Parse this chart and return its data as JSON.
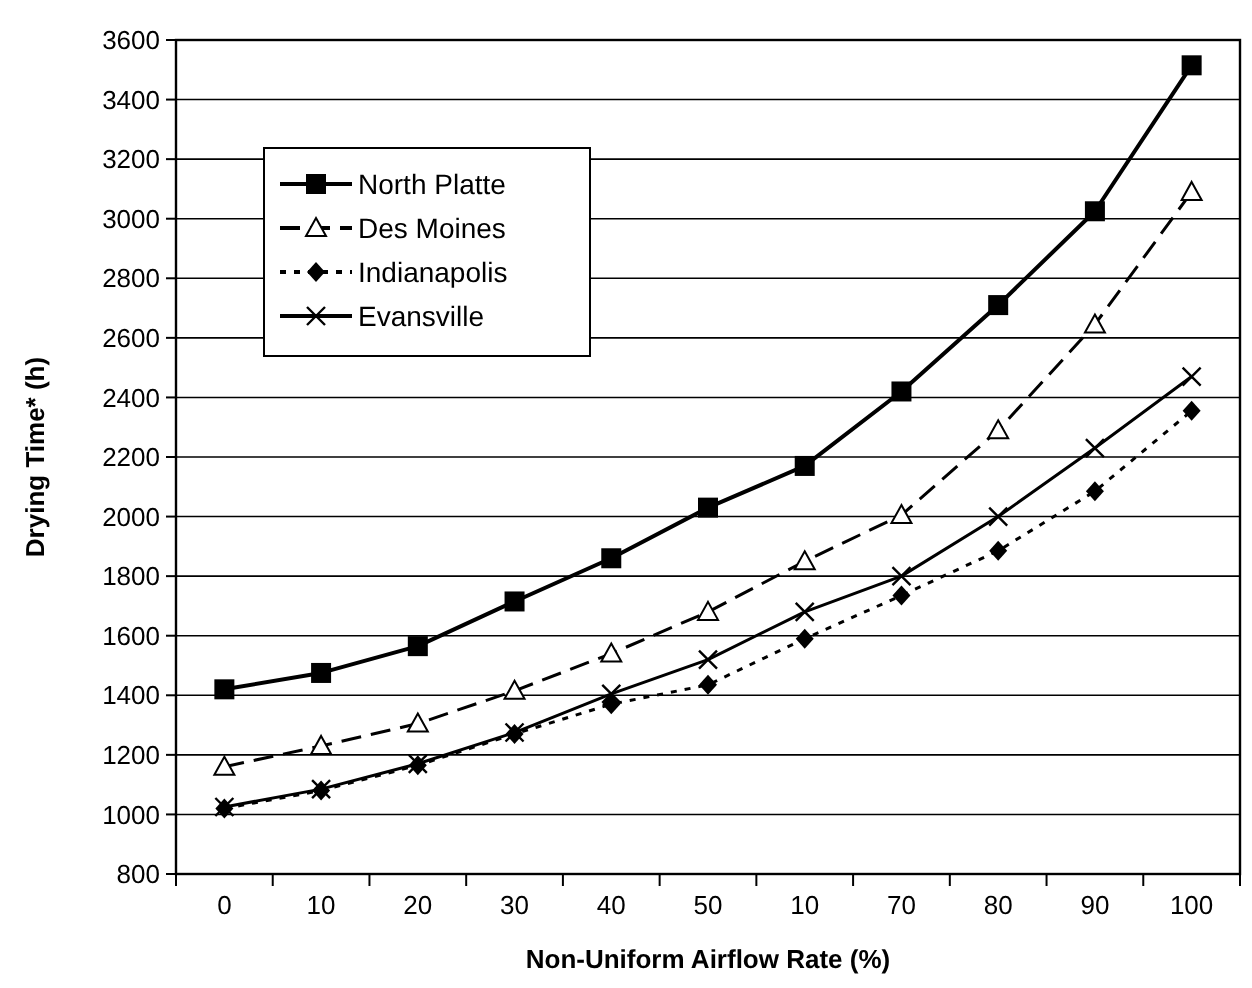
{
  "chart_data": {
    "type": "line",
    "xlabel": "Non-Uniform Airflow Rate (%)",
    "ylabel": "Drying Time* (h)",
    "categories": [
      "0",
      "10",
      "20",
      "30",
      "40",
      "50",
      "10",
      "70",
      "80",
      "90",
      "100"
    ],
    "ylim": [
      800,
      3600
    ],
    "yticks": [
      800,
      1000,
      1200,
      1400,
      1600,
      1800,
      2000,
      2200,
      2400,
      2600,
      2800,
      3000,
      3200,
      3400,
      3600
    ],
    "grid": "y",
    "legend": "top left",
    "series": [
      {
        "name": "North Platte",
        "color": "#000000",
        "marker": "square",
        "line_style": "solid",
        "values": [
          1420,
          1475,
          1565,
          1715,
          1860,
          2030,
          2170,
          2420,
          2710,
          3025,
          3515
        ]
      },
      {
        "name": "Des Moines",
        "color": "#000000",
        "marker": "triangle",
        "line_style": "dashed",
        "values": [
          1160,
          1230,
          1305,
          1415,
          1540,
          1680,
          1850,
          2005,
          2290,
          2645,
          3090
        ]
      },
      {
        "name": "Indianapolis",
        "color": "#000000",
        "marker": "diamond",
        "line_style": "dotted",
        "values": [
          1020,
          1080,
          1165,
          1270,
          1370,
          1435,
          1590,
          1735,
          1885,
          2085,
          2355
        ]
      },
      {
        "name": "Evansville",
        "color": "#000000",
        "marker": "cross",
        "line_style": "solid",
        "values": [
          1025,
          1085,
          1170,
          1275,
          1405,
          1520,
          1680,
          1800,
          2000,
          2230,
          2470
        ]
      }
    ]
  }
}
